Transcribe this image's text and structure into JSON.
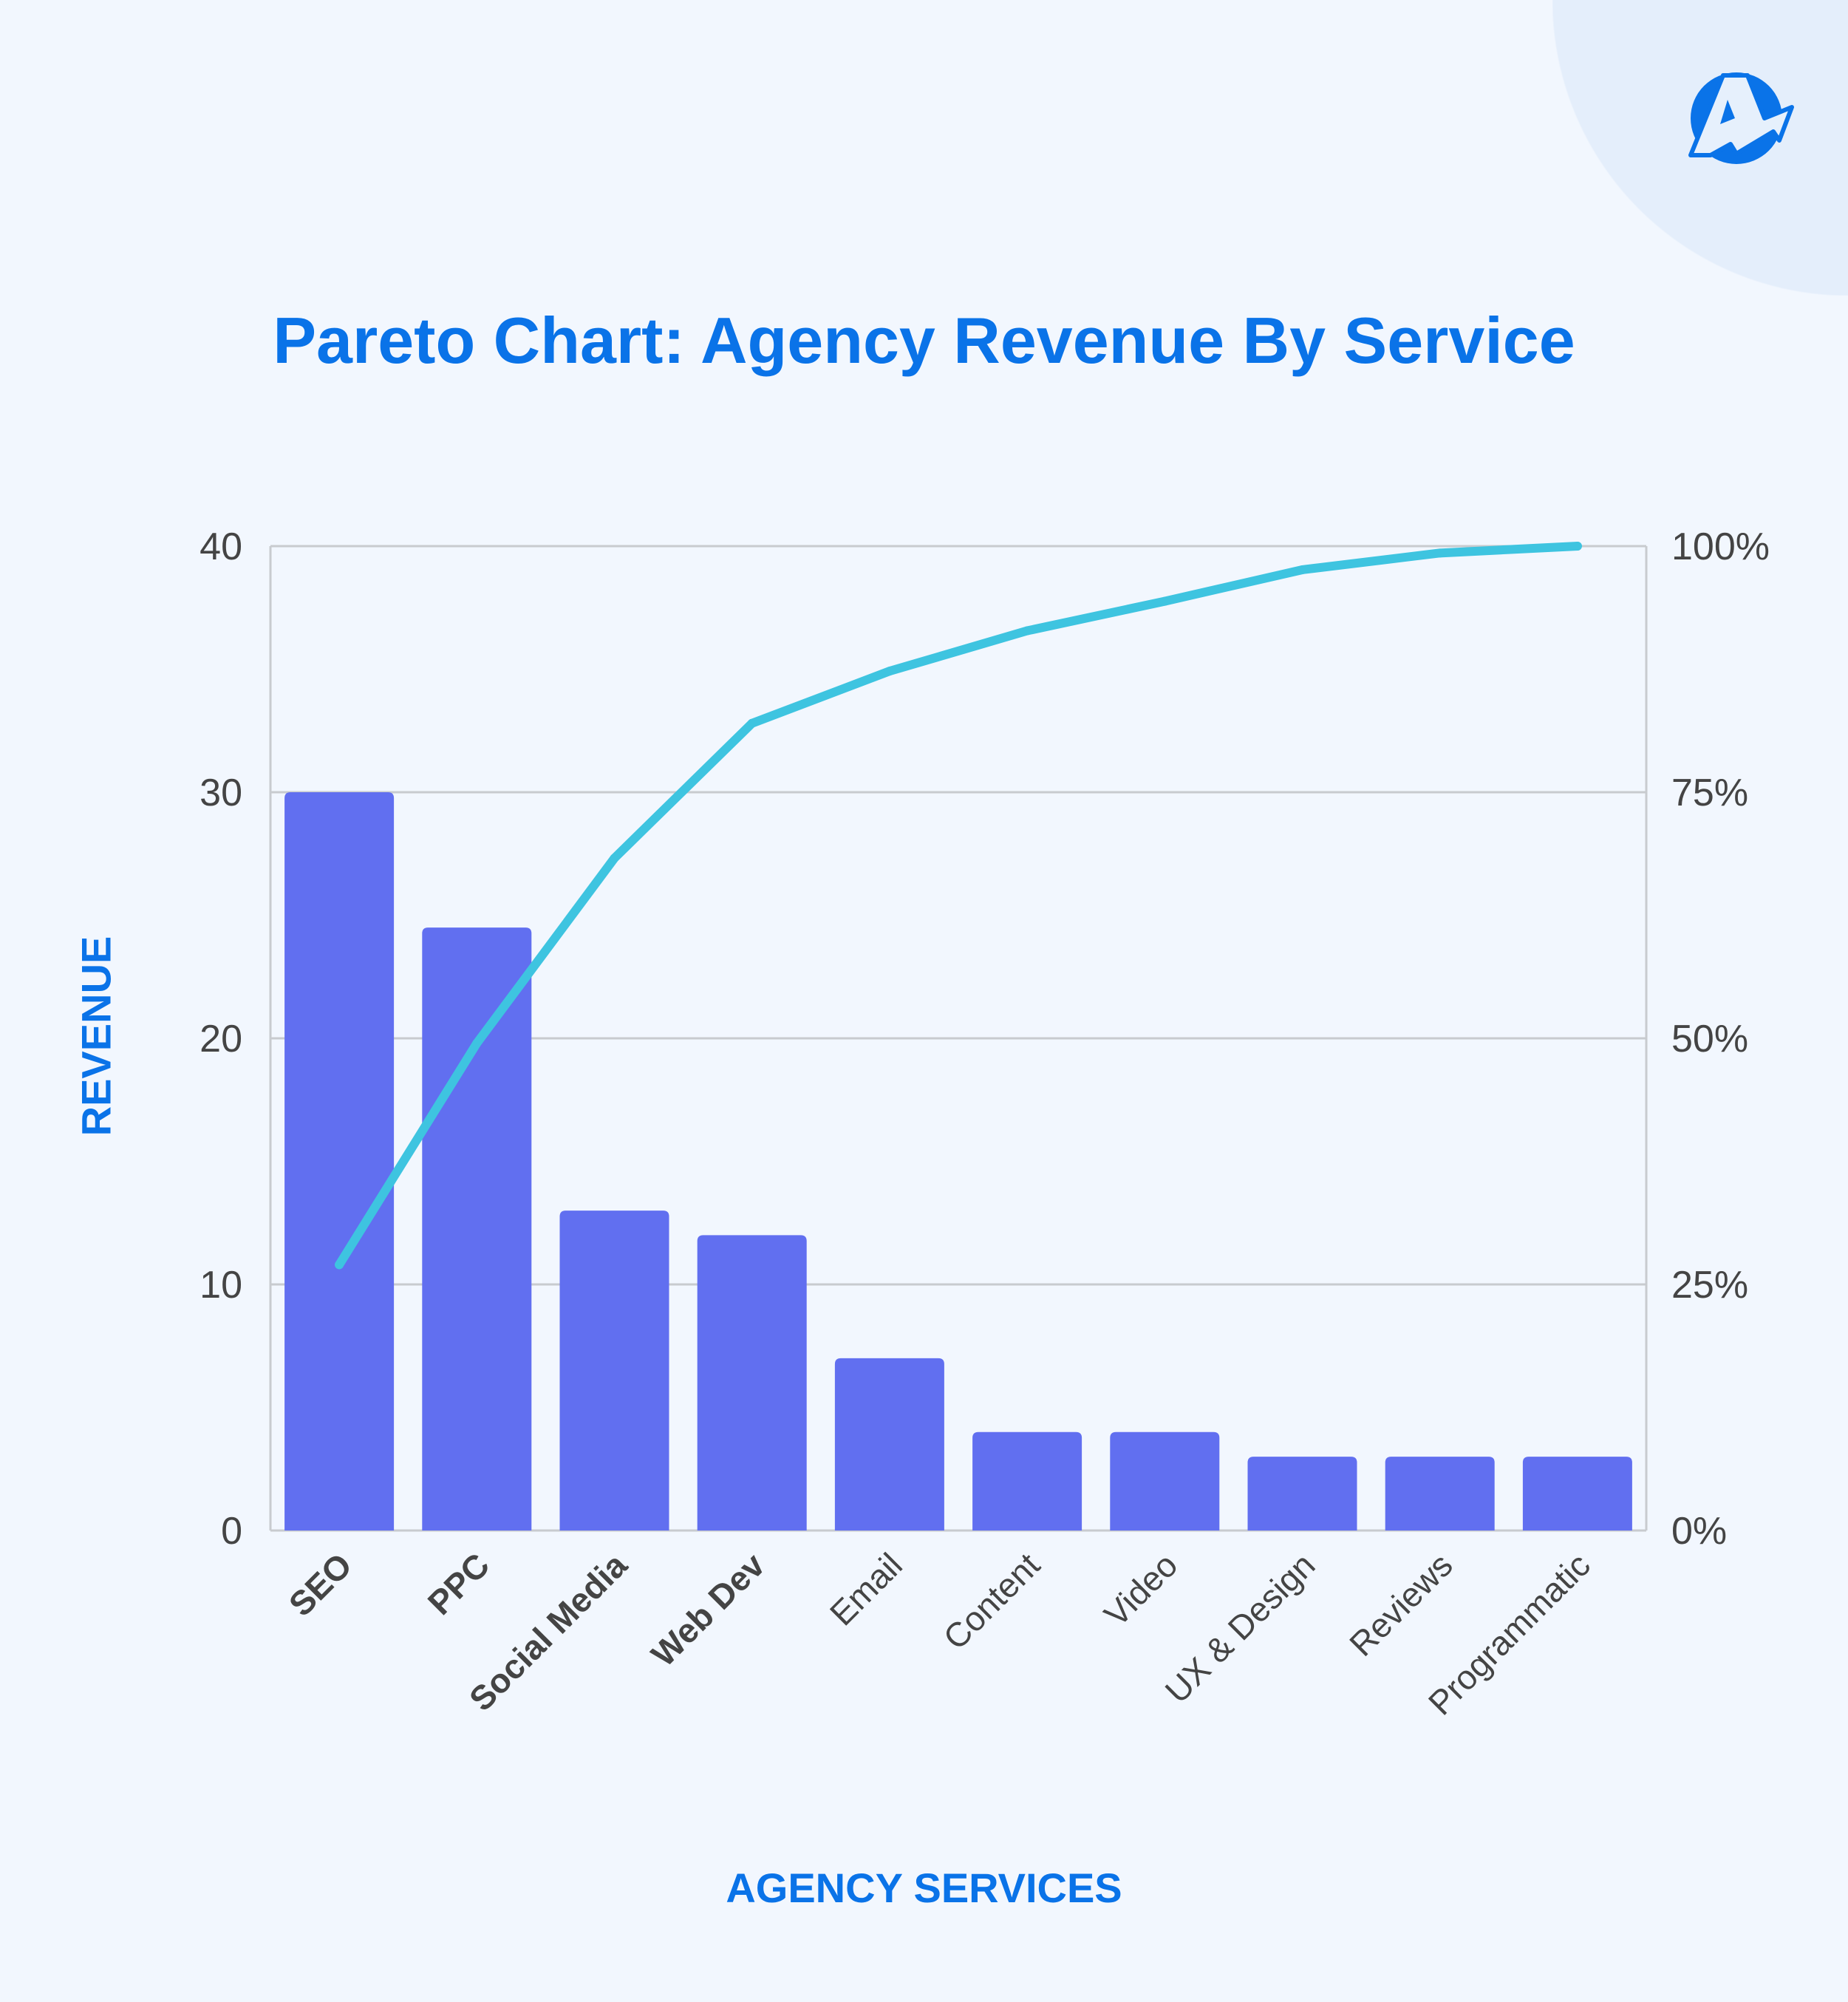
{
  "chart_data": {
    "type": "bar",
    "title": "Pareto Chart: Agency Revenue By Service",
    "xlabel": "AGENCY SERVICES",
    "ylabel": "REVENUE",
    "categories": [
      "SEO",
      "PPC",
      "Social Media",
      "Web Dev",
      "Email",
      "Content",
      "Video",
      "UX & Design",
      "Reviews",
      "Programmatic"
    ],
    "bold_categories": [
      "SEO",
      "PPC",
      "Social Media",
      "Web Dev"
    ],
    "series": [
      {
        "type": "bar",
        "axis": "left",
        "values": [
          30,
          24.5,
          13,
          12,
          7,
          4,
          4,
          3,
          3,
          3
        ],
        "color": "#616ff0"
      },
      {
        "type": "line",
        "axis": "right",
        "values": [
          27,
          49.5,
          68.3,
          82,
          87.3,
          91.4,
          94.4,
          97.6,
          99.3,
          100
        ],
        "color": "#3ec4e0"
      }
    ],
    "ylim": [
      0,
      40
    ],
    "yticks": [
      "0",
      "10",
      "20",
      "30",
      "40"
    ],
    "y2lim": [
      0,
      100
    ],
    "y2ticks": [
      "0%",
      "25%",
      "50%",
      "75%",
      "100%"
    ],
    "grid": true,
    "legend": "none"
  },
  "logo": {
    "name": "agency-analytics-logo",
    "color": "#0a73e8"
  }
}
